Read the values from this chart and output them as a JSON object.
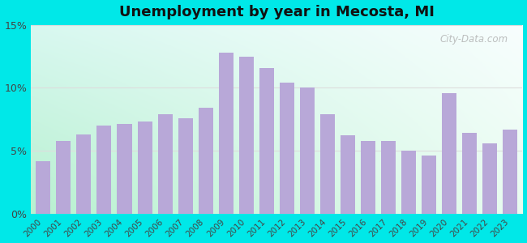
{
  "title": "Unemployment by year in Mecosta, MI",
  "years": [
    2000,
    2001,
    2002,
    2003,
    2004,
    2005,
    2006,
    2007,
    2008,
    2009,
    2010,
    2011,
    2012,
    2013,
    2014,
    2015,
    2016,
    2017,
    2018,
    2019,
    2020,
    2021,
    2022,
    2023
  ],
  "values": [
    4.2,
    5.8,
    6.3,
    7.0,
    7.1,
    7.3,
    7.9,
    7.6,
    8.4,
    12.8,
    12.5,
    11.6,
    10.4,
    10.0,
    7.9,
    6.2,
    5.8,
    5.8,
    5.0,
    4.6,
    9.6,
    6.4,
    5.6,
    6.7
  ],
  "bar_color": "#b8a8d8",
  "title_fontsize": 13,
  "ytick_labels": [
    "0%",
    "5%",
    "10%",
    "15%"
  ],
  "ytick_values": [
    0,
    5,
    10,
    15
  ],
  "ylim": [
    0,
    15
  ],
  "outer_bg": "#00e8e8",
  "watermark": "City-Data.com",
  "grad_color_bottom_left": "#b8f0d0",
  "grad_color_top_right": "#f0fafa",
  "grid_color": "#dddddd",
  "tick_color": "#444444"
}
